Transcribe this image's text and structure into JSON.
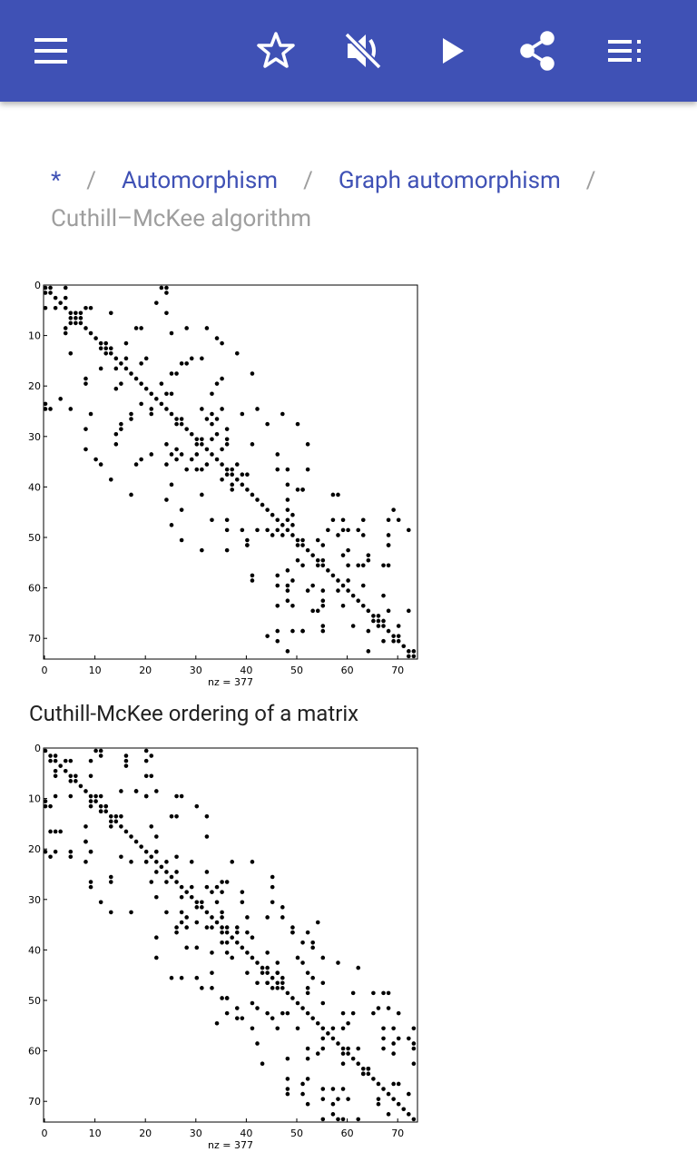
{
  "breadcrumb": {
    "items": [
      "*",
      "Automorphism",
      "Graph automorphism"
    ],
    "current": "Cuthill–McKee algorithm"
  },
  "figures": [
    {
      "xticks": [
        0,
        10,
        20,
        30,
        40,
        50,
        60,
        70
      ],
      "yticks": [
        0,
        10,
        20,
        30,
        40,
        50,
        60,
        70
      ],
      "xlabel": "nz = 377",
      "caption": "Cuthill-McKee ordering of a matrix"
    },
    {
      "xticks": [
        0,
        10,
        20,
        30,
        40,
        50,
        60,
        70
      ],
      "yticks": [
        0,
        10,
        20,
        30,
        40,
        50,
        60,
        70
      ],
      "xlabel": "nz = 377"
    }
  ]
}
